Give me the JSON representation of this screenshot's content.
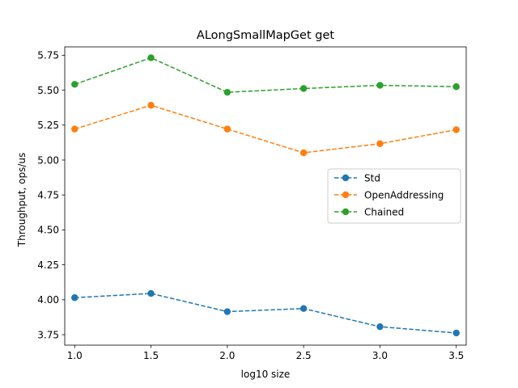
{
  "chart_data": {
    "type": "line",
    "title": "ALongSmallMapGet get",
    "xlabel": "log10 size",
    "ylabel": "Throughput, ops/us",
    "x": [
      1.0,
      1.5,
      2.0,
      2.5,
      3.0,
      3.5
    ],
    "xlim": [
      0.935,
      3.565
    ],
    "ylim": [
      3.675,
      5.81
    ],
    "xticks": [
      1.0,
      1.5,
      2.0,
      2.5,
      3.0,
      3.5
    ],
    "xtick_labels": [
      "1.0",
      "1.5",
      "2.0",
      "2.5",
      "3.0",
      "3.5"
    ],
    "yticks": [
      3.75,
      4.0,
      4.25,
      4.5,
      4.75,
      5.0,
      5.25,
      5.5,
      5.75
    ],
    "ytick_labels": [
      "3.75",
      "4.00",
      "4.25",
      "4.50",
      "4.75",
      "5.00",
      "5.25",
      "5.50",
      "5.75"
    ],
    "grid": false,
    "legend_position": "center-right",
    "series": [
      {
        "name": "Std",
        "color": "#1f77b4",
        "values": [
          4.015,
          4.045,
          3.915,
          3.937,
          3.807,
          3.762
        ]
      },
      {
        "name": "OpenAddressing",
        "color": "#ff7f0e",
        "values": [
          5.222,
          5.392,
          5.222,
          5.052,
          5.117,
          5.217
        ]
      },
      {
        "name": "Chained",
        "color": "#2ca02c",
        "values": [
          5.542,
          5.732,
          5.485,
          5.512,
          5.535,
          5.525
        ]
      }
    ]
  }
}
